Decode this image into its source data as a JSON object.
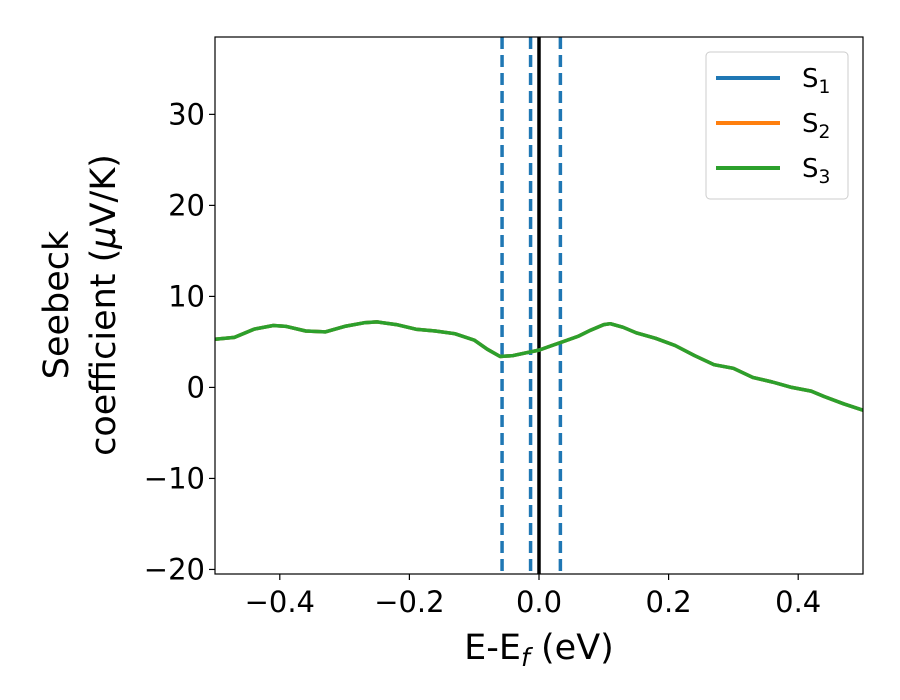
{
  "chart_data": {
    "type": "line",
    "title": "",
    "xlabel": {
      "main": "E-E",
      "sub": "f",
      "unit": " (eV)"
    },
    "ylabel": {
      "line1": "Seebeck",
      "line2": "coefficient  (",
      "mu": "μ",
      "unit": "V/K)"
    },
    "xlim": [
      -0.5,
      0.5
    ],
    "ylim": [
      -20.5,
      38.5
    ],
    "xticks": [
      -0.4,
      -0.2,
      0.0,
      0.2,
      0.4
    ],
    "xtick_labels": [
      "−0.4",
      "−0.2",
      "0.0",
      "0.2",
      "0.4"
    ],
    "yticks": [
      -20,
      -10,
      0,
      10,
      20,
      30
    ],
    "ytick_labels": [
      "−20",
      "−10",
      "0",
      "10",
      "20",
      "30"
    ],
    "grid": false,
    "legend_position": "top-right",
    "x": [
      -0.5,
      -0.47,
      -0.44,
      -0.41,
      -0.39,
      -0.36,
      -0.33,
      -0.3,
      -0.27,
      -0.25,
      -0.22,
      -0.19,
      -0.16,
      -0.13,
      -0.1,
      -0.08,
      -0.06,
      -0.04,
      -0.02,
      0.0,
      0.02,
      0.04,
      0.06,
      0.08,
      0.1,
      0.11,
      0.13,
      0.15,
      0.18,
      0.21,
      0.24,
      0.27,
      0.3,
      0.33,
      0.36,
      0.39,
      0.42,
      0.44,
      0.47,
      0.5
    ],
    "series": [
      {
        "name": "S",
        "sub": "1",
        "color": "#1f77b4",
        "values": [
          5.3,
          5.5,
          6.4,
          6.8,
          6.7,
          6.2,
          6.1,
          6.7,
          7.1,
          7.2,
          6.9,
          6.4,
          6.2,
          5.9,
          5.2,
          4.2,
          3.4,
          3.5,
          3.8,
          4.1,
          4.6,
          5.1,
          5.6,
          6.3,
          6.9,
          7.0,
          6.6,
          6.0,
          5.4,
          4.6,
          3.5,
          2.5,
          2.1,
          1.1,
          0.6,
          0.0,
          -0.4,
          -1.0,
          -1.8,
          -2.5
        ]
      },
      {
        "name": "S",
        "sub": "2",
        "color": "#ff7f0e",
        "values": [
          5.3,
          5.5,
          6.4,
          6.8,
          6.7,
          6.2,
          6.1,
          6.7,
          7.1,
          7.2,
          6.9,
          6.4,
          6.2,
          5.9,
          5.2,
          4.2,
          3.4,
          3.5,
          3.8,
          4.1,
          4.6,
          5.1,
          5.6,
          6.3,
          6.9,
          7.0,
          6.6,
          6.0,
          5.4,
          4.6,
          3.5,
          2.5,
          2.1,
          1.1,
          0.6,
          0.0,
          -0.4,
          -1.0,
          -1.8,
          -2.5
        ]
      },
      {
        "name": "S",
        "sub": "3",
        "color": "#2ca02c",
        "values": [
          5.3,
          5.5,
          6.4,
          6.8,
          6.7,
          6.2,
          6.1,
          6.7,
          7.1,
          7.2,
          6.9,
          6.4,
          6.2,
          5.9,
          5.2,
          4.2,
          3.4,
          3.5,
          3.8,
          4.1,
          4.6,
          5.1,
          5.6,
          6.3,
          6.9,
          7.0,
          6.6,
          6.0,
          5.4,
          4.6,
          3.5,
          2.5,
          2.1,
          1.1,
          0.6,
          0.0,
          -0.4,
          -1.0,
          -1.8,
          -2.5
        ]
      }
    ],
    "vlines": [
      {
        "x": -0.057,
        "style": "dashed",
        "color": "#1f77b4"
      },
      {
        "x": -0.013,
        "style": "dashed",
        "color": "#1f77b4"
      },
      {
        "x": 0.0,
        "style": "solid",
        "color": "#000000"
      },
      {
        "x": 0.033,
        "style": "dashed",
        "color": "#1f77b4"
      }
    ]
  }
}
